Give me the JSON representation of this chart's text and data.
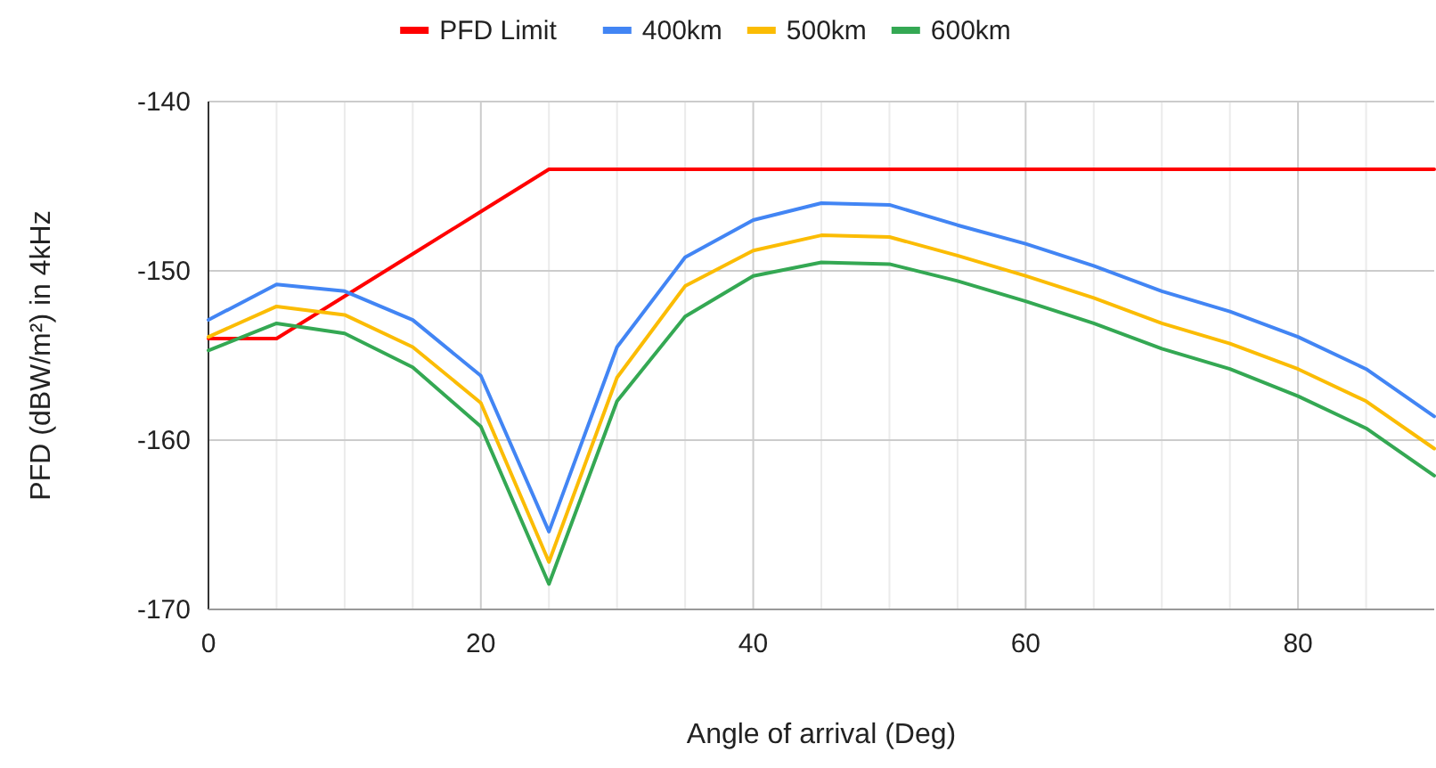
{
  "chart_data": {
    "type": "line",
    "xlabel": "Angle of arrival (Deg)",
    "ylabel": "PFD (dBW/m²) in 4kHz",
    "x": [
      0,
      5,
      10,
      15,
      20,
      25,
      30,
      35,
      40,
      45,
      50,
      55,
      60,
      65,
      70,
      75,
      80,
      85,
      90
    ],
    "series": [
      {
        "name": "PFD Limit",
        "color": "#ff0000",
        "values": [
          -154,
          -154,
          -151.5,
          -149,
          -146.5,
          -144,
          -144,
          -144,
          -144,
          -144,
          -144,
          -144,
          -144,
          -144,
          -144,
          -144,
          -144,
          -144,
          -144
        ]
      },
      {
        "name": "400km",
        "color": "#4285f4",
        "values": [
          -152.9,
          -150.8,
          -151.2,
          -152.9,
          -156.2,
          -165.4,
          -154.5,
          -149.2,
          -147,
          -146,
          -146.1,
          -147.3,
          -148.4,
          -149.7,
          -151.2,
          -152.4,
          -153.9,
          -155.8,
          -158.6
        ]
      },
      {
        "name": "500km",
        "color": "#fbbc04",
        "values": [
          -153.9,
          -152.1,
          -152.6,
          -154.5,
          -157.8,
          -167.2,
          -156.3,
          -150.9,
          -148.8,
          -147.9,
          -148,
          -149.1,
          -150.3,
          -151.6,
          -153.1,
          -154.3,
          -155.8,
          -157.7,
          -160.5
        ]
      },
      {
        "name": "600km",
        "color": "#34a853",
        "values": [
          -154.7,
          -153.1,
          -153.7,
          -155.7,
          -159.2,
          -168.5,
          -157.7,
          -152.7,
          -150.3,
          -149.5,
          -149.6,
          -150.6,
          -151.8,
          -153.1,
          -154.6,
          -155.8,
          -157.4,
          -159.3,
          -162.1
        ]
      }
    ],
    "xlim": [
      0,
      90
    ],
    "xticks": [
      0,
      {
        "value": 5,
        "label": null
      },
      {
        "value": 10,
        "label": null
      },
      {
        "value": 15,
        "label": null
      },
      20,
      {
        "value": 25,
        "label": null
      },
      {
        "value": 30,
        "label": null
      },
      {
        "value": 35,
        "label": null
      },
      40,
      {
        "value": 45,
        "label": null
      },
      {
        "value": 50,
        "label": null
      },
      {
        "value": 55,
        "label": null
      },
      60,
      {
        "value": 65,
        "label": null
      },
      {
        "value": 70,
        "label": null
      },
      {
        "value": 75,
        "label": null
      },
      80,
      {
        "value": 85,
        "label": null
      }
    ],
    "ylim": [
      -170,
      -140
    ],
    "yticks": [
      -170,
      -160,
      -150,
      -140
    ],
    "grid": true,
    "legend": "top",
    "marker": "none",
    "line_style": "solid"
  }
}
